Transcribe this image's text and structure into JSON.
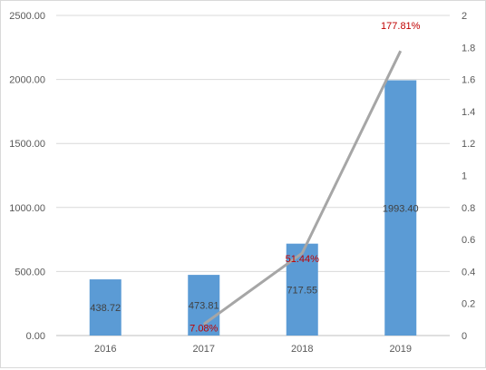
{
  "chart_data": {
    "type": "bar",
    "categories": [
      "2016",
      "2017",
      "2018",
      "2019"
    ],
    "series": [
      {
        "kind": "bar",
        "axis": "left",
        "values": [
          438.72,
          473.81,
          717.55,
          1993.4
        ],
        "labels": [
          "438.72",
          "473.81",
          "717.55",
          "1993.40"
        ],
        "color": "#5b9bd5"
      },
      {
        "kind": "line",
        "axis": "right",
        "values": [
          null,
          0.0708,
          0.5144,
          1.7781
        ],
        "labels": [
          "",
          "7.08%",
          "51.44%",
          "177.81%"
        ],
        "color": "#a6a6a6",
        "label_color": "#c00000"
      }
    ],
    "left_axis": {
      "min": 0,
      "max": 2500,
      "ticks": [
        "0.00",
        "500.00",
        "1000.00",
        "1500.00",
        "2000.00",
        "2500.00"
      ]
    },
    "right_axis": {
      "min": 0,
      "max": 2,
      "ticks": [
        "0",
        "0.2",
        "0.4",
        "0.6",
        "0.8",
        "1",
        "1.2",
        "1.4",
        "1.6",
        "1.8",
        "2"
      ]
    },
    "grid": true,
    "legend": "none",
    "title": "",
    "xlabel": "",
    "ylabel": ""
  }
}
